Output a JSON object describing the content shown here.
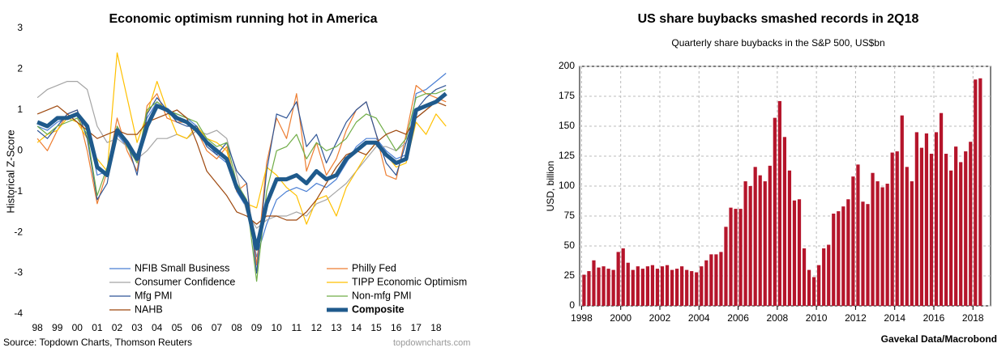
{
  "chart_data": [
    {
      "type": "line",
      "title": "Economic optimism running hot in America",
      "y_label": "Historical Z-Score",
      "source": "Source: Topdown Charts, Thomson Reuters",
      "watermark": "topdowncharts.com",
      "x": [
        1998,
        1998.5,
        1999,
        1999.5,
        2000,
        2000.5,
        2001,
        2001.5,
        2002,
        2002.5,
        2003,
        2003.5,
        2004,
        2004.5,
        2005,
        2005.5,
        2006,
        2006.5,
        2007,
        2007.5,
        2008,
        2008.5,
        2009,
        2009.5,
        2010,
        2010.5,
        2011,
        2011.5,
        2012,
        2012.5,
        2013,
        2013.5,
        2014,
        2014.5,
        2015,
        2015.5,
        2016,
        2016.5,
        2017,
        2017.5,
        2018,
        2018.5
      ],
      "xlim": [
        1997.75,
        2018.9
      ],
      "xticks": [
        {
          "value": 1998,
          "label": "98"
        },
        {
          "value": 1999,
          "label": "99"
        },
        {
          "value": 2000,
          "label": "00"
        },
        {
          "value": 2001,
          "label": "01"
        },
        {
          "value": 2002,
          "label": "02"
        },
        {
          "value": 2003,
          "label": "03"
        },
        {
          "value": 2004,
          "label": "04"
        },
        {
          "value": 2005,
          "label": "05"
        },
        {
          "value": 2006,
          "label": "06"
        },
        {
          "value": 2007,
          "label": "07"
        },
        {
          "value": 2008,
          "label": "08"
        },
        {
          "value": 2009,
          "label": "09"
        },
        {
          "value": 2010,
          "label": "10"
        },
        {
          "value": 2011,
          "label": "11"
        },
        {
          "value": 2012,
          "label": "12"
        },
        {
          "value": 2013,
          "label": "13"
        },
        {
          "value": 2014,
          "label": "14"
        },
        {
          "value": 2015,
          "label": "15"
        },
        {
          "value": 2016,
          "label": "16"
        },
        {
          "value": 2017,
          "label": "17"
        },
        {
          "value": 2018,
          "label": "18"
        }
      ],
      "ylim": [
        -4,
        3
      ],
      "yticks": [
        -4,
        -3,
        -2,
        -1,
        0,
        1,
        2,
        3
      ],
      "grid": false,
      "series": [
        {
          "name": "NFIB Small Business",
          "color": "#4a7fd4",
          "width": 1.2,
          "values": [
            0.6,
            0.5,
            0.7,
            0.8,
            0.9,
            0.6,
            -0.6,
            -0.5,
            0.4,
            0.1,
            -0.1,
            0.8,
            1.2,
            1.0,
            0.9,
            0.8,
            0.6,
            0.2,
            -0.1,
            -0.3,
            -1.0,
            -1.4,
            -2.6,
            -1.8,
            -1.2,
            -1.0,
            -0.9,
            -1.0,
            -0.8,
            -0.9,
            -0.7,
            -0.3,
            0.1,
            0.3,
            0.3,
            0.0,
            -0.2,
            -0.1,
            1.4,
            1.5,
            1.7,
            1.9
          ]
        },
        {
          "name": "Philly Fed",
          "color": "#ed7d31",
          "width": 1.2,
          "values": [
            0.3,
            0.0,
            0.5,
            0.9,
            1.0,
            0.0,
            -1.3,
            -0.5,
            0.8,
            0.0,
            -0.5,
            1.1,
            1.4,
            0.8,
            0.7,
            0.7,
            0.5,
            0.0,
            -0.2,
            0.1,
            -1.0,
            -0.8,
            -2.8,
            -0.3,
            0.8,
            0.3,
            1.4,
            -0.5,
            0.2,
            -0.6,
            -0.2,
            0.5,
            1.0,
            1.2,
            0.4,
            -0.6,
            -0.7,
            0.4,
            1.6,
            1.4,
            1.3,
            1.2
          ]
        },
        {
          "name": "Consumer Confidence",
          "color": "#a5a5a5",
          "width": 1.2,
          "values": [
            1.3,
            1.5,
            1.6,
            1.7,
            1.7,
            1.5,
            0.6,
            0.2,
            0.3,
            0.1,
            -0.2,
            0.0,
            0.3,
            0.3,
            0.4,
            0.3,
            0.5,
            0.4,
            0.5,
            0.3,
            -0.6,
            -1.5,
            -1.9,
            -1.7,
            -1.6,
            -1.6,
            -1.5,
            -1.6,
            -1.3,
            -1.2,
            -1.0,
            -0.8,
            -0.5,
            -0.2,
            0.1,
            0.1,
            0.0,
            0.2,
            0.8,
            1.0,
            1.2,
            1.4
          ]
        },
        {
          "name": "TIPP Economic Optimism",
          "color": "#ffc000",
          "width": 1.2,
          "values": [
            0.2,
            0.4,
            0.5,
            0.8,
            0.7,
            0.3,
            -0.2,
            -0.5,
            2.4,
            1.3,
            0.2,
            0.9,
            1.7,
            1.0,
            0.4,
            0.3,
            0.6,
            0.3,
            0.2,
            0.0,
            -0.9,
            -1.3,
            -1.4,
            -0.4,
            -0.6,
            -0.9,
            -1.1,
            -1.8,
            -1.2,
            -1.1,
            -1.6,
            -0.9,
            -0.5,
            -0.1,
            0.2,
            -0.1,
            -0.4,
            -0.3,
            0.7,
            0.4,
            0.9,
            0.6
          ]
        },
        {
          "name": "Mfg PMI",
          "color": "#2f5597",
          "width": 1.2,
          "values": [
            0.5,
            0.3,
            0.6,
            0.9,
            1.0,
            0.3,
            -1.2,
            -0.8,
            0.6,
            0.2,
            -0.6,
            0.9,
            1.3,
            1.0,
            0.7,
            0.6,
            0.6,
            0.1,
            -0.1,
            0.2,
            -0.5,
            -0.8,
            -3.0,
            -0.5,
            0.9,
            0.8,
            1.2,
            0.1,
            0.4,
            -0.3,
            0.2,
            0.7,
            1.0,
            1.2,
            0.4,
            -0.3,
            -0.6,
            0.2,
            1.0,
            1.3,
            1.5,
            1.6
          ]
        },
        {
          "name": "Non-mfg PMI",
          "color": "#70ad47",
          "width": 1.2,
          "values": [
            0.6,
            0.4,
            0.6,
            0.7,
            0.8,
            0.4,
            -1.1,
            -0.4,
            0.6,
            0.1,
            -0.3,
            1.0,
            1.2,
            1.0,
            0.9,
            0.8,
            0.7,
            0.3,
            0.1,
            0.2,
            -0.8,
            -1.2,
            -3.2,
            -1.0,
            0.0,
            0.1,
            0.4,
            -0.2,
            0.2,
            0.0,
            0.1,
            0.3,
            0.7,
            0.9,
            0.8,
            0.4,
            0.0,
            0.3,
            1.3,
            1.4,
            1.4,
            1.5
          ]
        },
        {
          "name": "NAHB",
          "color": "#9e480e",
          "width": 1.2,
          "values": [
            0.9,
            1.0,
            1.1,
            0.9,
            0.7,
            0.5,
            0.3,
            0.4,
            0.5,
            0.4,
            0.4,
            0.7,
            0.8,
            0.9,
            1.0,
            0.8,
            0.2,
            -0.5,
            -0.8,
            -1.1,
            -1.5,
            -1.6,
            -1.8,
            -1.6,
            -1.6,
            -1.7,
            -1.7,
            -1.5,
            -1.2,
            -0.8,
            -0.4,
            -0.1,
            0.0,
            -0.1,
            0.2,
            0.4,
            0.5,
            0.4,
            0.8,
            1.0,
            1.2,
            1.1
          ]
        },
        {
          "name": "Composite",
          "color": "#1f5a8c",
          "width": 5,
          "values": [
            0.7,
            0.6,
            0.8,
            0.8,
            0.9,
            0.6,
            -0.4,
            -0.6,
            0.5,
            0.2,
            -0.2,
            0.6,
            1.1,
            1.0,
            0.8,
            0.7,
            0.5,
            0.2,
            0.0,
            -0.2,
            -0.9,
            -1.3,
            -2.4,
            -1.3,
            -0.7,
            -0.7,
            -0.6,
            -0.8,
            -0.5,
            -0.7,
            -0.6,
            -0.2,
            0.0,
            0.2,
            0.2,
            -0.1,
            -0.3,
            -0.2,
            1.0,
            1.1,
            1.2,
            1.4
          ]
        }
      ]
    },
    {
      "type": "bar",
      "title": "US share buybacks smashed records in 2Q18",
      "subtitle": "Quarterly share buybacks in the S&P 500, US$bn",
      "y_label": "USD, billion",
      "source": "Gavekal Data/Macrobond",
      "color": "#b5152b",
      "x": [
        1998,
        1998.25,
        1998.5,
        1998.75,
        1999,
        1999.25,
        1999.5,
        1999.75,
        2000,
        2000.25,
        2000.5,
        2000.75,
        2001,
        2001.25,
        2001.5,
        2001.75,
        2002,
        2002.25,
        2002.5,
        2002.75,
        2003,
        2003.25,
        2003.5,
        2003.75,
        2004,
        2004.25,
        2004.5,
        2004.75,
        2005,
        2005.25,
        2005.5,
        2005.75,
        2006,
        2006.25,
        2006.5,
        2006.75,
        2007,
        2007.25,
        2007.5,
        2007.75,
        2008,
        2008.25,
        2008.5,
        2008.75,
        2009,
        2009.25,
        2009.5,
        2009.75,
        2010,
        2010.25,
        2010.5,
        2010.75,
        2011,
        2011.25,
        2011.5,
        2011.75,
        2012,
        2012.25,
        2012.5,
        2012.75,
        2013,
        2013.25,
        2013.5,
        2013.75,
        2014,
        2014.25,
        2014.5,
        2014.75,
        2015,
        2015.25,
        2015.5,
        2015.75,
        2016,
        2016.25,
        2016.5,
        2016.75,
        2017,
        2017.25,
        2017.5,
        2017.75,
        2018,
        2018.25
      ],
      "values": [
        26,
        29,
        38,
        32,
        33,
        31,
        30,
        45,
        48,
        36,
        30,
        33,
        31,
        33,
        34,
        31,
        33,
        34,
        30,
        31,
        33,
        30,
        29,
        28,
        33,
        38,
        43,
        43,
        45,
        66,
        82,
        81,
        81,
        104,
        100,
        116,
        109,
        104,
        117,
        157,
        171,
        141,
        113,
        88,
        89,
        48,
        30,
        24,
        34,
        48,
        51,
        77,
        79,
        83,
        89,
        108,
        118,
        87,
        85,
        111,
        104,
        99,
        102,
        128,
        129,
        159,
        116,
        104,
        145,
        132,
        144,
        127,
        145,
        161,
        127,
        113,
        133,
        120,
        129,
        137,
        189,
        190
      ],
      "xlim": [
        1997.9,
        2018.9
      ],
      "xticks": [
        1998,
        2000,
        2002,
        2004,
        2006,
        2008,
        2010,
        2012,
        2014,
        2016,
        2018
      ],
      "ylim": [
        0,
        200
      ],
      "yticks": [
        0,
        25,
        50,
        75,
        100,
        125,
        150,
        175,
        200
      ],
      "grid": true
    }
  ]
}
